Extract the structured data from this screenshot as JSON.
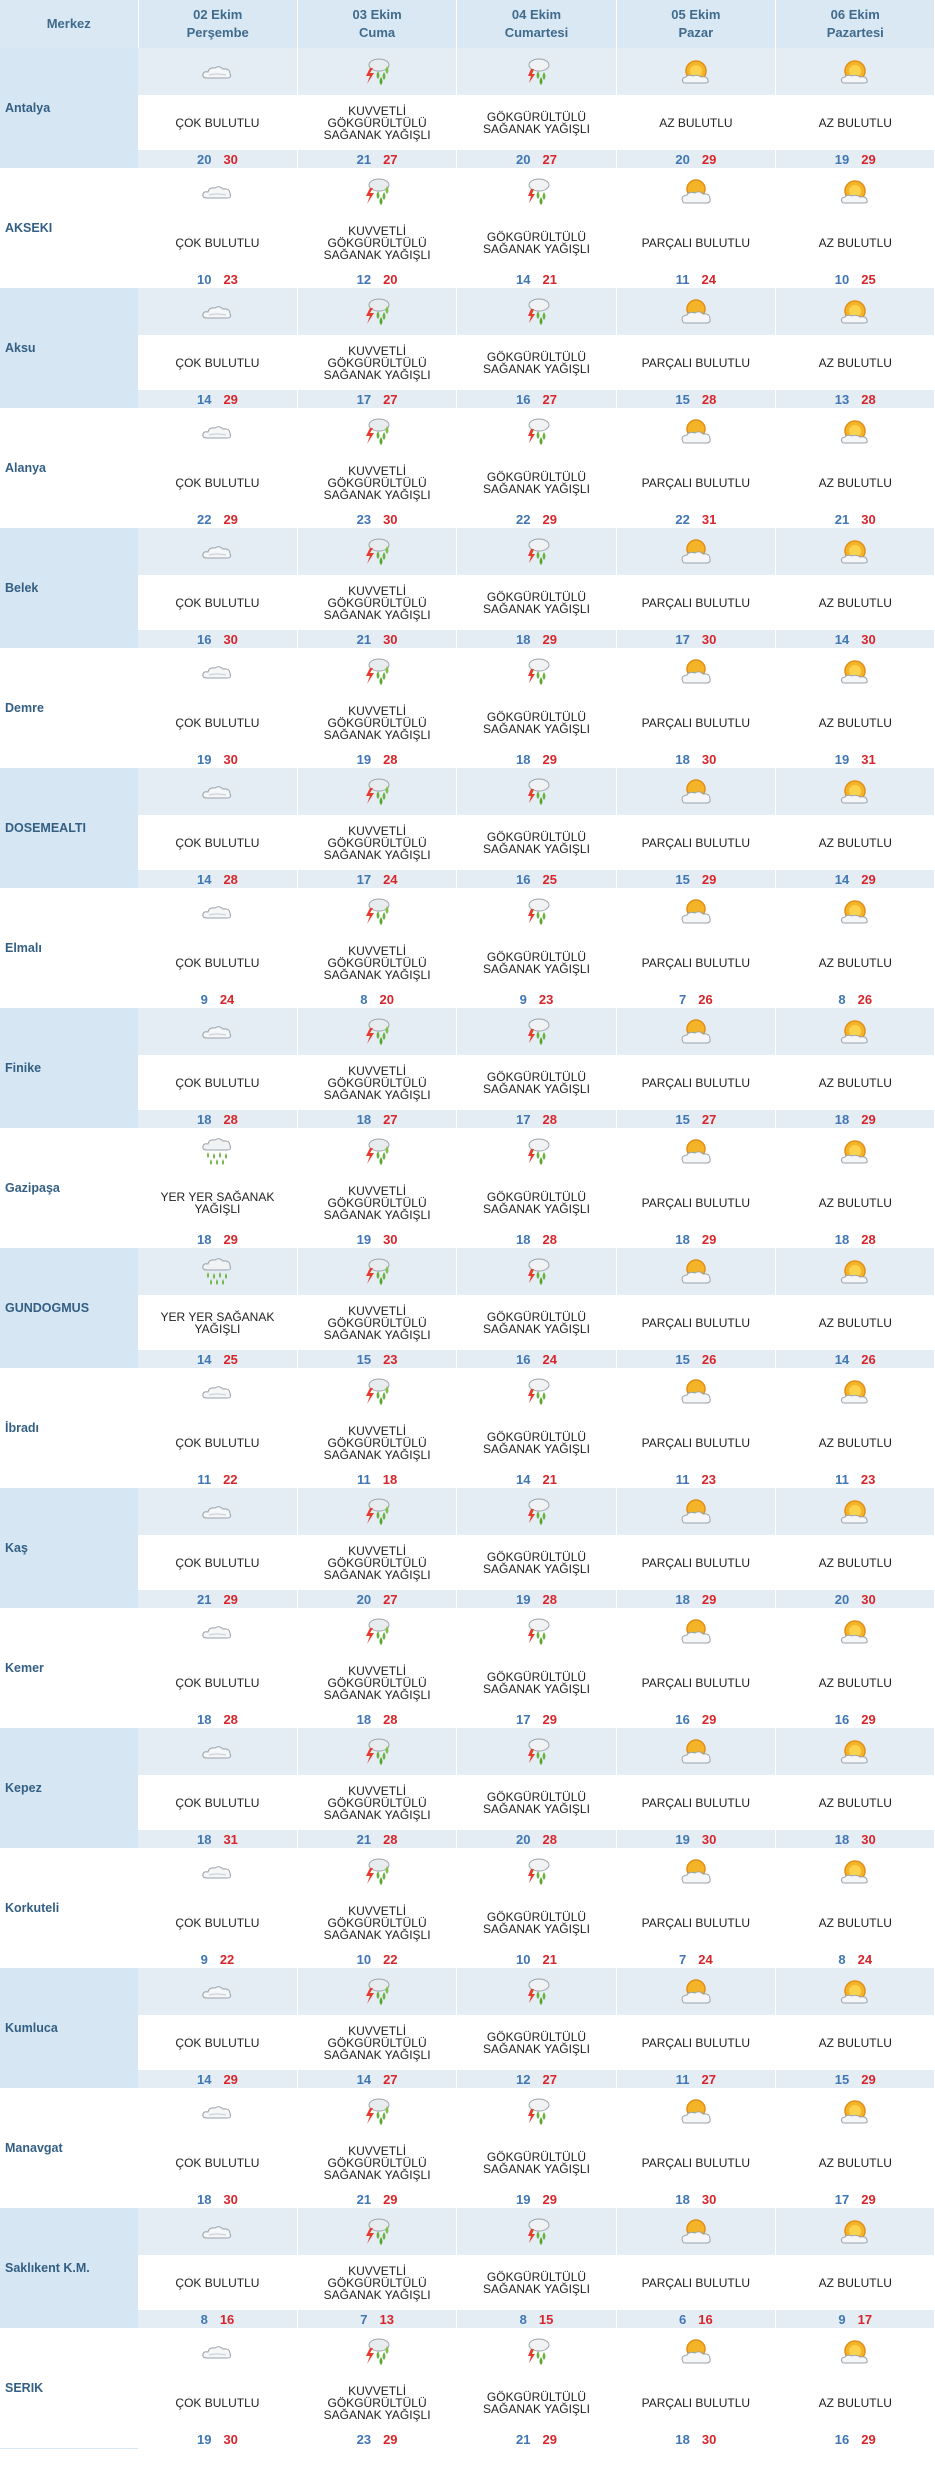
{
  "header": {
    "city_col": "Merkez",
    "days": [
      {
        "date": "02 Ekim",
        "weekday": "Perşembe"
      },
      {
        "date": "03 Ekim",
        "weekday": "Cuma"
      },
      {
        "date": "04 Ekim",
        "weekday": "Cumartesi"
      },
      {
        "date": "05 Ekim",
        "weekday": "Pazar"
      },
      {
        "date": "06 Ekim",
        "weekday": "Pazartesi"
      }
    ]
  },
  "colors": {
    "low": "#3f76b4",
    "high": "#d6262b",
    "city_bg": "#d6e6f2",
    "header_bg": "#d9e8f3"
  },
  "rows": [
    {
      "city": "Antalya",
      "days": [
        {
          "icon": "cloudy-icon",
          "desc": "ÇOK BULUTLU",
          "lo": "20",
          "hi": "30"
        },
        {
          "icon": "thunderstorm-icon",
          "desc": "KUVVETLİ GÖKGÜRÜLTÜLÜ SAĞANAK YAĞIŞLI",
          "lo": "21",
          "hi": "27"
        },
        {
          "icon": "thunder-shower-icon",
          "desc": "GÖKGÜRÜLTÜLÜ SAĞANAK YAĞIŞLI",
          "lo": "20",
          "hi": "27"
        },
        {
          "icon": "mostly-sunny-icon",
          "desc": "AZ BULUTLU",
          "lo": "20",
          "hi": "29"
        },
        {
          "icon": "mostly-sunny-icon",
          "desc": "AZ BULUTLU",
          "lo": "19",
          "hi": "29"
        }
      ]
    },
    {
      "city": "AKSEKI",
      "days": [
        {
          "icon": "cloudy-icon",
          "desc": "ÇOK BULUTLU",
          "lo": "10",
          "hi": "23"
        },
        {
          "icon": "thunderstorm-icon",
          "desc": "KUVVETLİ GÖKGÜRÜLTÜLÜ SAĞANAK YAĞIŞLI",
          "lo": "12",
          "hi": "20"
        },
        {
          "icon": "thunder-shower-icon",
          "desc": "GÖKGÜRÜLTÜLÜ SAĞANAK YAĞIŞLI",
          "lo": "14",
          "hi": "21"
        },
        {
          "icon": "partly-cloudy-icon",
          "desc": "PARÇALI BULUTLU",
          "lo": "11",
          "hi": "24"
        },
        {
          "icon": "mostly-sunny-icon",
          "desc": "AZ BULUTLU",
          "lo": "10",
          "hi": "25"
        }
      ]
    },
    {
      "city": "Aksu",
      "days": [
        {
          "icon": "cloudy-icon",
          "desc": "ÇOK BULUTLU",
          "lo": "14",
          "hi": "29"
        },
        {
          "icon": "thunderstorm-icon",
          "desc": "KUVVETLİ GÖKGÜRÜLTÜLÜ SAĞANAK YAĞIŞLI",
          "lo": "17",
          "hi": "27"
        },
        {
          "icon": "thunder-shower-icon",
          "desc": "GÖKGÜRÜLTÜLÜ SAĞANAK YAĞIŞLI",
          "lo": "16",
          "hi": "27"
        },
        {
          "icon": "partly-cloudy-icon",
          "desc": "PARÇALI BULUTLU",
          "lo": "15",
          "hi": "28"
        },
        {
          "icon": "mostly-sunny-icon",
          "desc": "AZ BULUTLU",
          "lo": "13",
          "hi": "28"
        }
      ]
    },
    {
      "city": "Alanya",
      "days": [
        {
          "icon": "cloudy-icon",
          "desc": "ÇOK BULUTLU",
          "lo": "22",
          "hi": "29"
        },
        {
          "icon": "thunderstorm-icon",
          "desc": "KUVVETLİ GÖKGÜRÜLTÜLÜ SAĞANAK YAĞIŞLI",
          "lo": "23",
          "hi": "30"
        },
        {
          "icon": "thunder-shower-icon",
          "desc": "GÖKGÜRÜLTÜLÜ SAĞANAK YAĞIŞLI",
          "lo": "22",
          "hi": "29"
        },
        {
          "icon": "partly-cloudy-icon",
          "desc": "PARÇALI BULUTLU",
          "lo": "22",
          "hi": "31"
        },
        {
          "icon": "mostly-sunny-icon",
          "desc": "AZ BULUTLU",
          "lo": "21",
          "hi": "30"
        }
      ]
    },
    {
      "city": "Belek",
      "days": [
        {
          "icon": "cloudy-icon",
          "desc": "ÇOK BULUTLU",
          "lo": "16",
          "hi": "30"
        },
        {
          "icon": "thunderstorm-icon",
          "desc": "KUVVETLİ GÖKGÜRÜLTÜLÜ SAĞANAK YAĞIŞLI",
          "lo": "21",
          "hi": "30"
        },
        {
          "icon": "thunder-shower-icon",
          "desc": "GÖKGÜRÜLTÜLÜ SAĞANAK YAĞIŞLI",
          "lo": "18",
          "hi": "29"
        },
        {
          "icon": "partly-cloudy-icon",
          "desc": "PARÇALI BULUTLU",
          "lo": "17",
          "hi": "30"
        },
        {
          "icon": "mostly-sunny-icon",
          "desc": "AZ BULUTLU",
          "lo": "14",
          "hi": "30"
        }
      ]
    },
    {
      "city": "Demre",
      "days": [
        {
          "icon": "cloudy-icon",
          "desc": "ÇOK BULUTLU",
          "lo": "19",
          "hi": "30"
        },
        {
          "icon": "thunderstorm-icon",
          "desc": "KUVVETLİ GÖKGÜRÜLTÜLÜ SAĞANAK YAĞIŞLI",
          "lo": "19",
          "hi": "28"
        },
        {
          "icon": "thunder-shower-icon",
          "desc": "GÖKGÜRÜLTÜLÜ SAĞANAK YAĞIŞLI",
          "lo": "18",
          "hi": "29"
        },
        {
          "icon": "partly-cloudy-icon",
          "desc": "PARÇALI BULUTLU",
          "lo": "18",
          "hi": "30"
        },
        {
          "icon": "mostly-sunny-icon",
          "desc": "AZ BULUTLU",
          "lo": "19",
          "hi": "31"
        }
      ]
    },
    {
      "city": "DOSEMEALTI",
      "days": [
        {
          "icon": "cloudy-icon",
          "desc": "ÇOK BULUTLU",
          "lo": "14",
          "hi": "28"
        },
        {
          "icon": "thunderstorm-icon",
          "desc": "KUVVETLİ GÖKGÜRÜLTÜLÜ SAĞANAK YAĞIŞLI",
          "lo": "17",
          "hi": "24"
        },
        {
          "icon": "thunder-shower-icon",
          "desc": "GÖKGÜRÜLTÜLÜ SAĞANAK YAĞIŞLI",
          "lo": "16",
          "hi": "25"
        },
        {
          "icon": "partly-cloudy-icon",
          "desc": "PARÇALI BULUTLU",
          "lo": "15",
          "hi": "29"
        },
        {
          "icon": "mostly-sunny-icon",
          "desc": "AZ BULUTLU",
          "lo": "14",
          "hi": "29"
        }
      ]
    },
    {
      "city": "Elmalı",
      "days": [
        {
          "icon": "cloudy-icon",
          "desc": "ÇOK BULUTLU",
          "lo": "9",
          "hi": "24"
        },
        {
          "icon": "thunderstorm-icon",
          "desc": "KUVVETLİ GÖKGÜRÜLTÜLÜ SAĞANAK YAĞIŞLI",
          "lo": "8",
          "hi": "20"
        },
        {
          "icon": "thunder-shower-icon",
          "desc": "GÖKGÜRÜLTÜLÜ SAĞANAK YAĞIŞLI",
          "lo": "9",
          "hi": "23"
        },
        {
          "icon": "partly-cloudy-icon",
          "desc": "PARÇALI BULUTLU",
          "lo": "7",
          "hi": "26"
        },
        {
          "icon": "mostly-sunny-icon",
          "desc": "AZ BULUTLU",
          "lo": "8",
          "hi": "26"
        }
      ]
    },
    {
      "city": "Finike",
      "days": [
        {
          "icon": "cloudy-icon",
          "desc": "ÇOK BULUTLU",
          "lo": "18",
          "hi": "28"
        },
        {
          "icon": "thunderstorm-icon",
          "desc": "KUVVETLİ GÖKGÜRÜLTÜLÜ SAĞANAK YAĞIŞLI",
          "lo": "18",
          "hi": "27"
        },
        {
          "icon": "thunder-shower-icon",
          "desc": "GÖKGÜRÜLTÜLÜ SAĞANAK YAĞIŞLI",
          "lo": "17",
          "hi": "28"
        },
        {
          "icon": "partly-cloudy-icon",
          "desc": "PARÇALI BULUTLU",
          "lo": "15",
          "hi": "27"
        },
        {
          "icon": "mostly-sunny-icon",
          "desc": "AZ BULUTLU",
          "lo": "18",
          "hi": "29"
        }
      ]
    },
    {
      "city": "Gazipaşa",
      "days": [
        {
          "icon": "rain-showers-icon",
          "desc": "YER YER SAĞANAK YAĞIŞLI",
          "lo": "18",
          "hi": "29"
        },
        {
          "icon": "thunderstorm-icon",
          "desc": "KUVVETLİ GÖKGÜRÜLTÜLÜ SAĞANAK YAĞIŞLI",
          "lo": "19",
          "hi": "30"
        },
        {
          "icon": "thunder-shower-icon",
          "desc": "GÖKGÜRÜLTÜLÜ SAĞANAK YAĞIŞLI",
          "lo": "18",
          "hi": "28"
        },
        {
          "icon": "partly-cloudy-icon",
          "desc": "PARÇALI BULUTLU",
          "lo": "18",
          "hi": "29"
        },
        {
          "icon": "mostly-sunny-icon",
          "desc": "AZ BULUTLU",
          "lo": "18",
          "hi": "28"
        }
      ]
    },
    {
      "city": "GUNDOGMUS",
      "days": [
        {
          "icon": "rain-showers-icon",
          "desc": "YER YER SAĞANAK YAĞIŞLI",
          "lo": "14",
          "hi": "25"
        },
        {
          "icon": "thunderstorm-icon",
          "desc": "KUVVETLİ GÖKGÜRÜLTÜLÜ SAĞANAK YAĞIŞLI",
          "lo": "15",
          "hi": "23"
        },
        {
          "icon": "thunder-shower-icon",
          "desc": "GÖKGÜRÜLTÜLÜ SAĞANAK YAĞIŞLI",
          "lo": "16",
          "hi": "24"
        },
        {
          "icon": "partly-cloudy-icon",
          "desc": "PARÇALI BULUTLU",
          "lo": "15",
          "hi": "26"
        },
        {
          "icon": "mostly-sunny-icon",
          "desc": "AZ BULUTLU",
          "lo": "14",
          "hi": "26"
        }
      ]
    },
    {
      "city": "İbradı",
      "days": [
        {
          "icon": "cloudy-icon",
          "desc": "ÇOK BULUTLU",
          "lo": "11",
          "hi": "22"
        },
        {
          "icon": "thunderstorm-icon",
          "desc": "KUVVETLİ GÖKGÜRÜLTÜLÜ SAĞANAK YAĞIŞLI",
          "lo": "11",
          "hi": "18"
        },
        {
          "icon": "thunder-shower-icon",
          "desc": "GÖKGÜRÜLTÜLÜ SAĞANAK YAĞIŞLI",
          "lo": "14",
          "hi": "21"
        },
        {
          "icon": "partly-cloudy-icon",
          "desc": "PARÇALI BULUTLU",
          "lo": "11",
          "hi": "23"
        },
        {
          "icon": "mostly-sunny-icon",
          "desc": "AZ BULUTLU",
          "lo": "11",
          "hi": "23"
        }
      ]
    },
    {
      "city": "Kaş",
      "days": [
        {
          "icon": "cloudy-icon",
          "desc": "ÇOK BULUTLU",
          "lo": "21",
          "hi": "29"
        },
        {
          "icon": "thunderstorm-icon",
          "desc": "KUVVETLİ GÖKGÜRÜLTÜLÜ SAĞANAK YAĞIŞLI",
          "lo": "20",
          "hi": "27"
        },
        {
          "icon": "thunder-shower-icon",
          "desc": "GÖKGÜRÜLTÜLÜ SAĞANAK YAĞIŞLI",
          "lo": "19",
          "hi": "28"
        },
        {
          "icon": "partly-cloudy-icon",
          "desc": "PARÇALI BULUTLU",
          "lo": "18",
          "hi": "29"
        },
        {
          "icon": "mostly-sunny-icon",
          "desc": "AZ BULUTLU",
          "lo": "20",
          "hi": "30"
        }
      ]
    },
    {
      "city": "Kemer",
      "days": [
        {
          "icon": "cloudy-icon",
          "desc": "ÇOK BULUTLU",
          "lo": "18",
          "hi": "28"
        },
        {
          "icon": "thunderstorm-icon",
          "desc": "KUVVETLİ GÖKGÜRÜLTÜLÜ SAĞANAK YAĞIŞLI",
          "lo": "18",
          "hi": "28"
        },
        {
          "icon": "thunder-shower-icon",
          "desc": "GÖKGÜRÜLTÜLÜ SAĞANAK YAĞIŞLI",
          "lo": "17",
          "hi": "29"
        },
        {
          "icon": "partly-cloudy-icon",
          "desc": "PARÇALI BULUTLU",
          "lo": "16",
          "hi": "29"
        },
        {
          "icon": "mostly-sunny-icon",
          "desc": "AZ BULUTLU",
          "lo": "16",
          "hi": "29"
        }
      ]
    },
    {
      "city": "Kepez",
      "days": [
        {
          "icon": "cloudy-icon",
          "desc": "ÇOK BULUTLU",
          "lo": "18",
          "hi": "31"
        },
        {
          "icon": "thunderstorm-icon",
          "desc": "KUVVETLİ GÖKGÜRÜLTÜLÜ SAĞANAK YAĞIŞLI",
          "lo": "21",
          "hi": "28"
        },
        {
          "icon": "thunder-shower-icon",
          "desc": "GÖKGÜRÜLTÜLÜ SAĞANAK YAĞIŞLI",
          "lo": "20",
          "hi": "28"
        },
        {
          "icon": "partly-cloudy-icon",
          "desc": "PARÇALI BULUTLU",
          "lo": "19",
          "hi": "30"
        },
        {
          "icon": "mostly-sunny-icon",
          "desc": "AZ BULUTLU",
          "lo": "18",
          "hi": "30"
        }
      ]
    },
    {
      "city": "Korkuteli",
      "days": [
        {
          "icon": "cloudy-icon",
          "desc": "ÇOK BULUTLU",
          "lo": "9",
          "hi": "22"
        },
        {
          "icon": "thunderstorm-icon",
          "desc": "KUVVETLİ GÖKGÜRÜLTÜLÜ SAĞANAK YAĞIŞLI",
          "lo": "10",
          "hi": "22"
        },
        {
          "icon": "thunder-shower-icon",
          "desc": "GÖKGÜRÜLTÜLÜ SAĞANAK YAĞIŞLI",
          "lo": "10",
          "hi": "21"
        },
        {
          "icon": "partly-cloudy-icon",
          "desc": "PARÇALI BULUTLU",
          "lo": "7",
          "hi": "24"
        },
        {
          "icon": "mostly-sunny-icon",
          "desc": "AZ BULUTLU",
          "lo": "8",
          "hi": "24"
        }
      ]
    },
    {
      "city": "Kumluca",
      "days": [
        {
          "icon": "cloudy-icon",
          "desc": "ÇOK BULUTLU",
          "lo": "14",
          "hi": "29"
        },
        {
          "icon": "thunderstorm-icon",
          "desc": "KUVVETLİ GÖKGÜRÜLTÜLÜ SAĞANAK YAĞIŞLI",
          "lo": "14",
          "hi": "27"
        },
        {
          "icon": "thunder-shower-icon",
          "desc": "GÖKGÜRÜLTÜLÜ SAĞANAK YAĞIŞLI",
          "lo": "12",
          "hi": "27"
        },
        {
          "icon": "partly-cloudy-icon",
          "desc": "PARÇALI BULUTLU",
          "lo": "11",
          "hi": "27"
        },
        {
          "icon": "mostly-sunny-icon",
          "desc": "AZ BULUTLU",
          "lo": "15",
          "hi": "29"
        }
      ]
    },
    {
      "city": "Manavgat",
      "days": [
        {
          "icon": "cloudy-icon",
          "desc": "ÇOK BULUTLU",
          "lo": "18",
          "hi": "30"
        },
        {
          "icon": "thunderstorm-icon",
          "desc": "KUVVETLİ GÖKGÜRÜLTÜLÜ SAĞANAK YAĞIŞLI",
          "lo": "21",
          "hi": "29"
        },
        {
          "icon": "thunder-shower-icon",
          "desc": "GÖKGÜRÜLTÜLÜ SAĞANAK YAĞIŞLI",
          "lo": "19",
          "hi": "29"
        },
        {
          "icon": "partly-cloudy-icon",
          "desc": "PARÇALI BULUTLU",
          "lo": "18",
          "hi": "30"
        },
        {
          "icon": "mostly-sunny-icon",
          "desc": "AZ BULUTLU",
          "lo": "17",
          "hi": "29"
        }
      ]
    },
    {
      "city": "Saklıkent K.M.",
      "days": [
        {
          "icon": "cloudy-icon",
          "desc": "ÇOK BULUTLU",
          "lo": "8",
          "hi": "16"
        },
        {
          "icon": "thunderstorm-icon",
          "desc": "KUVVETLİ GÖKGÜRÜLTÜLÜ SAĞANAK YAĞIŞLI",
          "lo": "7",
          "hi": "13"
        },
        {
          "icon": "thunder-shower-icon",
          "desc": "GÖKGÜRÜLTÜLÜ SAĞANAK YAĞIŞLI",
          "lo": "8",
          "hi": "15"
        },
        {
          "icon": "partly-cloudy-icon",
          "desc": "PARÇALI BULUTLU",
          "lo": "6",
          "hi": "16"
        },
        {
          "icon": "mostly-sunny-icon",
          "desc": "AZ BULUTLU",
          "lo": "9",
          "hi": "17"
        }
      ]
    },
    {
      "city": "SERIK",
      "days": [
        {
          "icon": "cloudy-icon",
          "desc": "ÇOK BULUTLU",
          "lo": "19",
          "hi": "30"
        },
        {
          "icon": "thunderstorm-icon",
          "desc": "KUVVETLİ GÖKGÜRÜLTÜLÜ SAĞANAK YAĞIŞLI",
          "lo": "23",
          "hi": "29"
        },
        {
          "icon": "thunder-shower-icon",
          "desc": "GÖKGÜRÜLTÜLÜ SAĞANAK YAĞIŞLI",
          "lo": "21",
          "hi": "29"
        },
        {
          "icon": "partly-cloudy-icon",
          "desc": "PARÇALI BULUTLU",
          "lo": "18",
          "hi": "30"
        },
        {
          "icon": "mostly-sunny-icon",
          "desc": "AZ BULUTLU",
          "lo": "16",
          "hi": "29"
        }
      ]
    }
  ]
}
